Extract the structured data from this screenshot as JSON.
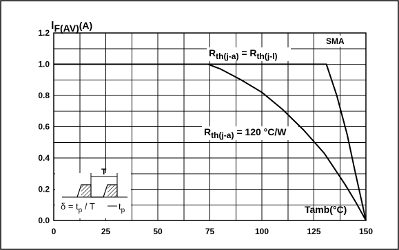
{
  "chart_data": {
    "type": "line",
    "ylabel_main": "I",
    "ylabel_sub": "F(AV)",
    "ylabel_unit": "(A)",
    "xlabel": "Tamb(°C)",
    "xlim": [
      0,
      150
    ],
    "ylim": [
      0,
      1.2
    ],
    "x_ticks": [
      0,
      25,
      50,
      75,
      100,
      125,
      150
    ],
    "x_tick_labels": [
      "0",
      "25",
      "50",
      "75",
      "100",
      "125",
      "150"
    ],
    "y_ticks": [
      0,
      0.2,
      0.4,
      0.6,
      0.8,
      1.0,
      1.2
    ],
    "y_tick_labels": [
      "0.0",
      "0.2",
      "0.4",
      "0.6",
      "0.8",
      "1.0",
      "1.2"
    ],
    "x_grid_step": 12.5,
    "y_grid_step": 0.1,
    "grid": true,
    "package_label": "SMA",
    "series": [
      {
        "annotation": {
          "main1": "R",
          "sub1": "th(j-a)",
          "mid": " = R",
          "sub2": "th(j-l)"
        },
        "x": [
          0,
          131,
          136,
          141,
          145,
          148,
          150
        ],
        "y": [
          1.0,
          1.0,
          0.8,
          0.55,
          0.3,
          0.12,
          0.0
        ]
      },
      {
        "annotation": {
          "main1": "R",
          "sub1": "th(j-a)",
          "mid": " = 120 °C/W"
        },
        "x": [
          0,
          74,
          80,
          90,
          100,
          110,
          120,
          130,
          140,
          145,
          150
        ],
        "y": [
          1.0,
          1.0,
          0.97,
          0.9,
          0.82,
          0.71,
          0.58,
          0.43,
          0.23,
          0.12,
          0.0
        ]
      }
    ],
    "inset": {
      "period_label": "T",
      "formula_main": "δ = t",
      "formula_sub": "p",
      "formula_rest": " / T",
      "pulse_label": "t",
      "pulse_sub": "p"
    }
  }
}
